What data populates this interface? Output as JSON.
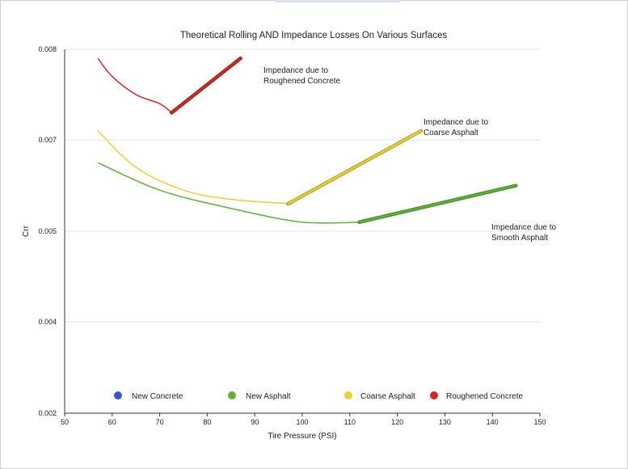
{
  "chart_data": {
    "type": "line",
    "title": "Theoretical Rolling AND Impedance Losses On Various Surfaces",
    "xlabel": "Tire Pressure (PSI)",
    "ylabel": "Crr",
    "xlim": [
      50,
      150
    ],
    "x_ticks": [
      "50",
      "60",
      "70",
      "80",
      "90",
      "100",
      "110",
      "120",
      "130",
      "140",
      "150"
    ],
    "y_ticks": [
      "0.002",
      "0.004",
      "0.005",
      "0.007",
      "0.008"
    ],
    "grid": "horizontal",
    "legend_position": "bottom",
    "legend": [
      {
        "name": "New Concrete",
        "color": "#3a55d0"
      },
      {
        "name": "New Asphalt",
        "color": "#5fb236"
      },
      {
        "name": "Coarse Asphalt",
        "color": "#e8d135"
      },
      {
        "name": "Roughened Concrete",
        "color": "#cf2a22"
      }
    ],
    "series": [
      {
        "name": "Roughened Concrete",
        "color": "#cf2a22",
        "rolling": [
          [
            57,
            0.0079
          ],
          [
            60,
            0.0077
          ],
          [
            65,
            0.0075
          ],
          [
            70,
            0.0074
          ],
          [
            72.5,
            0.0073
          ]
        ],
        "impedance": [
          [
            72.5,
            0.0073
          ],
          [
            87,
            0.0079
          ]
        ]
      },
      {
        "name": "Coarse Asphalt",
        "color": "#e8d135",
        "rolling": [
          [
            57,
            0.0071
          ],
          [
            65,
            0.0064
          ],
          [
            75,
            0.0059
          ],
          [
            85,
            0.0057
          ],
          [
            98,
            0.0056
          ]
        ],
        "impedance": [
          [
            97,
            0.0056
          ],
          [
            125,
            0.0071
          ]
        ]
      },
      {
        "name": "New Asphalt",
        "color": "#5fb236",
        "rolling": [
          [
            57,
            0.0065
          ],
          [
            70,
            0.0059
          ],
          [
            85,
            0.0055
          ],
          [
            100,
            0.0052
          ],
          [
            112,
            0.0052
          ]
        ],
        "impedance": [
          [
            112,
            0.0052
          ],
          [
            145,
            0.006
          ]
        ]
      }
    ],
    "annotations": [
      {
        "lines": [
          "Impedance due to",
          "Roughened Concrete"
        ]
      },
      {
        "lines": [
          "Impedance due to",
          "Coarse Asphalt"
        ]
      },
      {
        "lines": [
          "Impedance due to",
          "Smooth Asphalt"
        ]
      }
    ]
  }
}
